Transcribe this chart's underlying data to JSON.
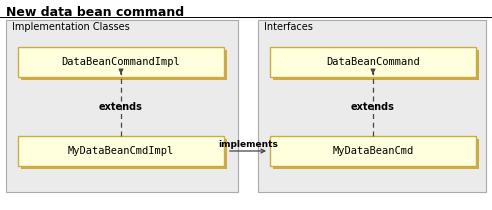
{
  "title": "New data bean command",
  "title_fontsize": 9,
  "bg_color": "#ffffff",
  "box_fill": "#ffffdd",
  "box_edge": "#ccaa44",
  "box_shadow_color": "#ccaa44",
  "panel_fill": "#ebebeb",
  "panel_edge": "#aaaaaa",
  "font_family": "monospace",
  "label_font": "sans-serif",
  "left_panel_label": "Implementation Classes",
  "right_panel_label": "Interfaces",
  "left_box1_text": "DataBeanCommandImpl",
  "left_box2_text": "MyDataBeanCmdImpl",
  "right_box1_text": "DataBeanCommand",
  "right_box2_text": "MyDataBeanCmd",
  "extends_label": "extends",
  "implements_label": "implements",
  "arrow_color": "#444444",
  "text_color": "#000000",
  "fig_w": 4.92,
  "fig_h": 2.1,
  "dpi": 100
}
